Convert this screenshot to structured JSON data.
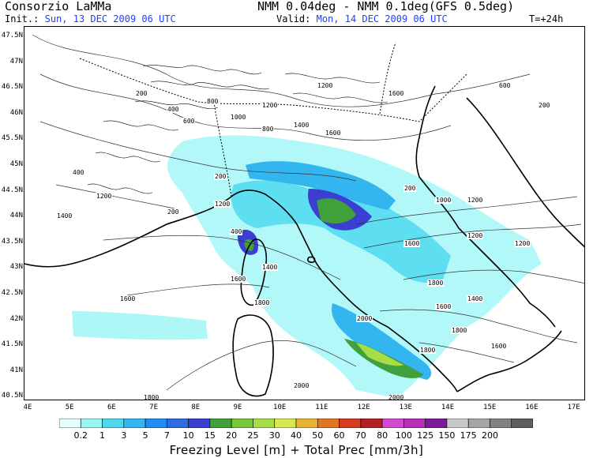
{
  "header": {
    "title": "Consorzio LaMMa",
    "model": "NMM 0.04deg - NMM 0.1deg(GFS 0.5deg)",
    "init_label": "Init.:",
    "init_value": "Sun, 13 DEC 2009  06 UTC",
    "valid_label": "Valid:",
    "valid_value": "Mon, 14 DEC 2009  06 UTC",
    "forecast_step": "T=+24h"
  },
  "axes": {
    "y_ticks": [
      "47.5N",
      "47N",
      "46.5N",
      "46N",
      "45.5N",
      "45N",
      "44.5N",
      "44N",
      "43.5N",
      "43N",
      "42.5N",
      "42N",
      "41.5N",
      "41N",
      "40.5N"
    ],
    "x_ticks": [
      "4E",
      "5E",
      "6E",
      "7E",
      "8E",
      "9E",
      "10E",
      "11E",
      "12E",
      "13E",
      "14E",
      "15E",
      "16E",
      "17E"
    ]
  },
  "colorbar": {
    "labels": [
      "0.2",
      "1",
      "3",
      "5",
      "7",
      "10",
      "15",
      "20",
      "25",
      "30",
      "40",
      "50",
      "60",
      "70",
      "80",
      "100",
      "125",
      "150",
      "175",
      "200"
    ],
    "colors": [
      "#e6ffff",
      "#9af5f5",
      "#4fd9f0",
      "#33b5ef",
      "#1e8cf0",
      "#2e6ae0",
      "#3a3fd1",
      "#3fa03c",
      "#76c73a",
      "#a7dd46",
      "#d7e94c",
      "#e6b233",
      "#e07522",
      "#d43b21",
      "#b41f1f",
      "#d24ad2",
      "#b42fb4",
      "#7d1a9a",
      "#c8c8c8",
      "#a5a5a5",
      "#828282",
      "#5e5e5e"
    ]
  },
  "contour_labels": [
    "200",
    "400",
    "600",
    "800",
    "1000",
    "1200",
    "1400",
    "1600",
    "1800",
    "2000"
  ],
  "footer": "Freezing Level [m] + Total Prec [mm/3h]"
}
